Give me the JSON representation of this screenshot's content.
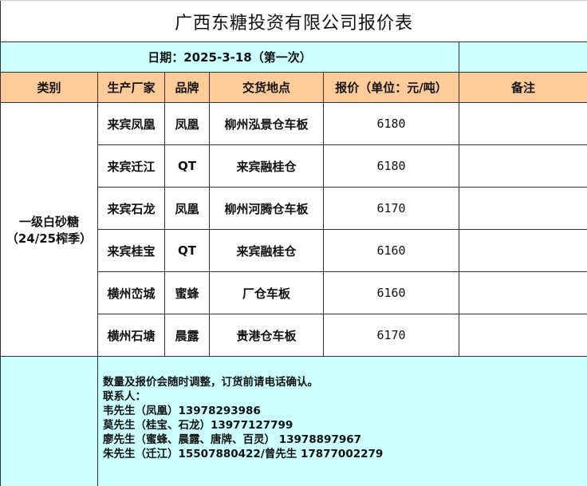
{
  "title": "广西东糖投资有限公司报价表",
  "date_label": "日期：2025-3-18（第一次）",
  "headers": [
    "类别",
    "生产厂家",
    "品牌",
    "交货地点",
    "报价（单位：元/吨）",
    "备注"
  ],
  "category": {
    "line1": "一级白砂糖",
    "line2": "（24/25榨季）"
  },
  "rows": [
    {
      "maker": "来宾凤凰",
      "brand": "凤凰",
      "location": "柳州泓景仓车板",
      "price": "6180",
      "note": ""
    },
    {
      "maker": "来宾迁江",
      "brand": "QT",
      "location": "来宾融桂仓",
      "price": "6180",
      "note": ""
    },
    {
      "maker": "来宾石龙",
      "brand": "凤凰",
      "location": "柳州河腾仓车板",
      "price": "6170",
      "note": ""
    },
    {
      "maker": "来宾桂宝",
      "brand": "QT",
      "location": "来宾融桂仓",
      "price": "6160",
      "note": ""
    },
    {
      "maker": "横州峦城",
      "brand": "蜜蜂",
      "location": "厂仓车板",
      "price": "6160",
      "note": ""
    },
    {
      "maker": "横州石塘",
      "brand": "晨露",
      "location": "贵港仓车板",
      "price": "6170",
      "note": ""
    }
  ],
  "notes": [
    "数量及报价会随时调整，订货前请电话确认。",
    "联系人：",
    "韦先生（凤凰）13978293986",
    "莫先生（桂宝、石龙）13977127799",
    "廖先生（蜜蜂、晨露、唐牌、百灵） 13978897967",
    "朱先生（迁江）15507880422/曾先生 17877002279"
  ]
}
